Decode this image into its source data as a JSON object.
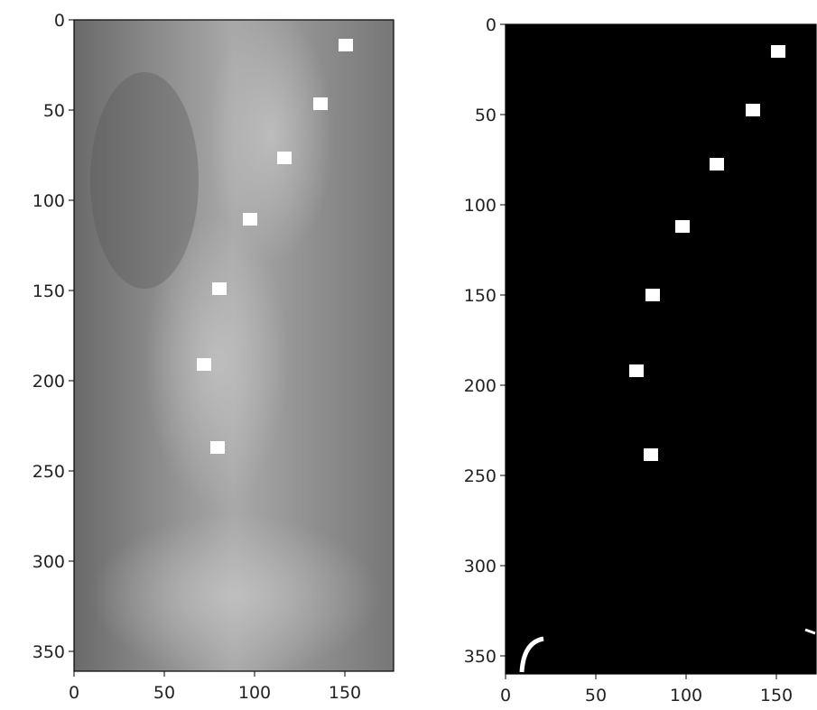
{
  "chart_data": [
    {
      "type": "scatter",
      "marker_color": "#ffffff",
      "x": [
        150.5,
        136.5,
        116.5,
        97.5,
        80.5,
        72,
        79.5
      ],
      "y": [
        14,
        46.5,
        76.5,
        110.5,
        149,
        191,
        237
      ],
      "xlim": [
        0,
        177
      ],
      "ylim": [
        361,
        0
      ],
      "xticks": [
        0,
        50,
        100,
        150
      ],
      "yticks": [
        0,
        50,
        100,
        150,
        200,
        250,
        300,
        350
      ]
    },
    {
      "type": "scatter",
      "marker_color": "#ffffff",
      "x": [
        151,
        137,
        117,
        98,
        81.5,
        72.5,
        80.5
      ],
      "y": [
        15,
        47.5,
        77.5,
        112,
        150,
        192,
        238.5
      ],
      "xlim": [
        0,
        172
      ],
      "ylim": [
        360,
        0
      ],
      "xticks": [
        0,
        50,
        100,
        150
      ],
      "yticks": [
        0,
        50,
        100,
        150,
        200,
        250,
        300,
        350
      ]
    }
  ]
}
